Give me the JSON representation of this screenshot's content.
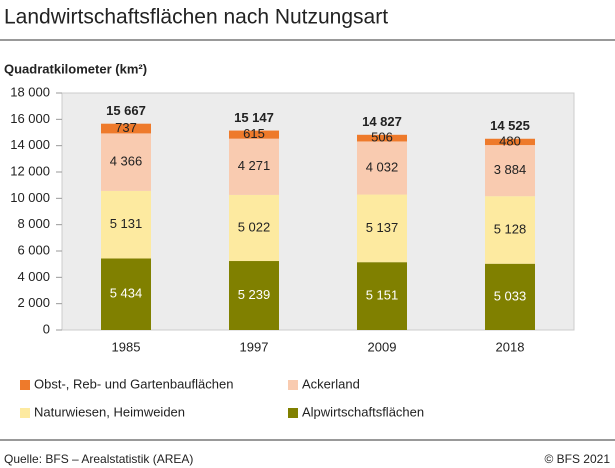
{
  "chart_data": {
    "type": "stacked-bar",
    "title": "Landwirtschaftsflächen nach Nutzungsart",
    "y_label": "Quadratkilometer (km²)",
    "categories": [
      "1985",
      "1997",
      "2009",
      "2018"
    ],
    "series": [
      {
        "name": "Alpwirtschaftsflächen",
        "color": "#808000",
        "values": [
          5434,
          5239,
          5151,
          5033
        ],
        "value_labels": [
          "5 434",
          "5 239",
          "5 151",
          "5 033"
        ]
      },
      {
        "name": "Naturwiesen, Heimweiden",
        "color": "#fdeaa0",
        "values": [
          5131,
          5022,
          5137,
          5128
        ],
        "value_labels": [
          "5 131",
          "5 022",
          "5 137",
          "5 128"
        ]
      },
      {
        "name": "Ackerland",
        "color": "#f9cbb0",
        "values": [
          4366,
          4271,
          4032,
          3884
        ],
        "value_labels": [
          "4 366",
          "4 271",
          "4 032",
          "3 884"
        ]
      },
      {
        "name": "Obst-, Reb- und Gartenbauflächen",
        "color": "#ee7a2b",
        "values": [
          737,
          615,
          506,
          480
        ],
        "value_labels": [
          "737",
          "615",
          "506",
          "480"
        ]
      }
    ],
    "totals": {
      "values": [
        15667,
        15147,
        14827,
        14525
      ],
      "value_labels": [
        "15 667",
        "15 147",
        "14 827",
        "14 525"
      ]
    },
    "ylim": [
      0,
      18000
    ],
    "yticks": [
      0,
      {
        "value": 2000,
        "label": "2 000"
      },
      {
        "value": 4000,
        "label": "4 000"
      },
      {
        "value": 6000,
        "label": "6 000"
      },
      {
        "value": 8000,
        "label": "8 000"
      },
      {
        "value": 10000,
        "label": "10 000"
      },
      {
        "value": 12000,
        "label": "12 000"
      },
      {
        "value": 14000,
        "label": "14 000"
      },
      {
        "value": 16000,
        "label": "16 000"
      },
      {
        "value": 18000,
        "label": "18 000"
      }
    ],
    "source": "Quelle: BFS – Arealstatistik (AREA)",
    "copyright": "© BFS 2021"
  }
}
